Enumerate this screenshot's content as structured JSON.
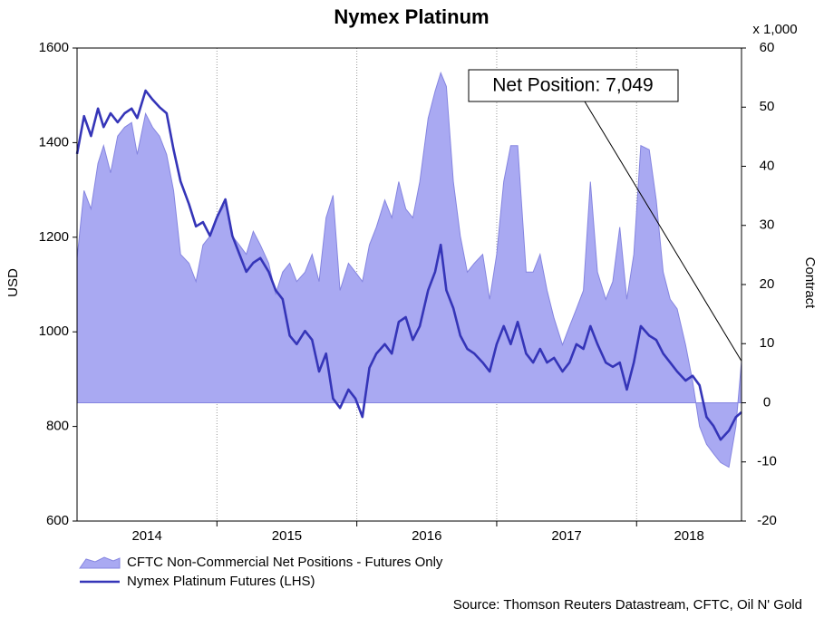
{
  "chart_data": {
    "type": "area-line",
    "title": "Nymex Platinum",
    "y_label": "USD",
    "y2_label": "Contract",
    "y2_unit": "x 1,000",
    "source": "Source: Thomson Reuters Datastream, CFTC, Oil N' Gold",
    "annotation": "Net Position: 7,049",
    "x": [
      2014.0,
      2014.05,
      2014.1,
      2014.15,
      2014.19,
      2014.24,
      2014.29,
      2014.34,
      2014.39,
      2014.43,
      2014.49,
      2014.54,
      2014.59,
      2014.64,
      2014.69,
      2014.74,
      2014.8,
      2014.85,
      2014.9,
      2014.95,
      2015.0,
      2015.06,
      2015.11,
      2015.16,
      2015.21,
      2015.26,
      2015.31,
      2015.37,
      2015.42,
      2015.47,
      2015.52,
      2015.57,
      2015.63,
      2015.68,
      2015.73,
      2015.78,
      2015.83,
      2015.88,
      2015.94,
      2015.99,
      2016.04,
      2016.09,
      2016.14,
      2016.2,
      2016.25,
      2016.3,
      2016.35,
      2016.4,
      2016.45,
      2016.51,
      2016.56,
      2016.6,
      2016.64,
      2016.69,
      2016.74,
      2016.79,
      2016.84,
      2016.9,
      2016.95,
      2017.0,
      2017.05,
      2017.1,
      2017.15,
      2017.21,
      2017.26,
      2017.31,
      2017.36,
      2017.41,
      2017.47,
      2017.52,
      2017.57,
      2017.62,
      2017.67,
      2017.72,
      2017.78,
      2017.83,
      2017.88,
      2017.93,
      2017.98,
      2018.03,
      2018.09,
      2018.14,
      2018.19,
      2018.24,
      2018.29,
      2018.35,
      2018.4,
      2018.45,
      2018.5,
      2018.55,
      2018.6,
      2018.66,
      2018.71,
      2018.75
    ],
    "series": [
      {
        "name": "CFTC Non-Commercial Net Positions - Futures Only",
        "kind": "area",
        "axis": "y2",
        "color": "#a9a9f2",
        "edge": "#8585e0",
        "values": [
          24.4,
          35.9,
          32.8,
          40.5,
          43.5,
          38.9,
          45.1,
          46.6,
          47.4,
          42.0,
          48.9,
          46.6,
          45.1,
          42.0,
          35.9,
          25.1,
          23.6,
          20.5,
          26.7,
          28.2,
          31.3,
          33.6,
          28.2,
          26.7,
          25.1,
          29.0,
          26.7,
          23.6,
          18.4,
          22.1,
          23.6,
          20.5,
          22.1,
          25.1,
          20.5,
          31.3,
          35.1,
          19.0,
          23.6,
          22.1,
          20.5,
          26.7,
          29.7,
          34.3,
          31.3,
          37.4,
          32.8,
          31.3,
          37.4,
          48.1,
          52.7,
          55.8,
          53.5,
          37.4,
          28.2,
          22.1,
          23.6,
          25.1,
          17.5,
          25.1,
          37.4,
          43.5,
          43.5,
          22.1,
          22.1,
          25.1,
          19.0,
          14.3,
          9.8,
          12.9,
          15.9,
          19.0,
          37.4,
          22.1,
          17.5,
          20.5,
          29.7,
          17.5,
          25.1,
          43.5,
          42.8,
          34.3,
          22.1,
          17.5,
          15.9,
          9.8,
          3.7,
          -4.0,
          -7.0,
          -8.6,
          -10.1,
          -10.9,
          -4.0,
          7.049
        ]
      },
      {
        "name": "Nymex Platinum Futures (LHS)",
        "kind": "line",
        "axis": "y",
        "color": "#3535b8",
        "values": [
          1376,
          1456,
          1414,
          1472,
          1433,
          1462,
          1443,
          1462,
          1472,
          1452,
          1510,
          1491,
          1475,
          1462,
          1385,
          1318,
          1270,
          1223,
          1232,
          1203,
          1242,
          1280,
          1203,
          1165,
          1127,
          1146,
          1156,
          1127,
          1088,
          1069,
          992,
          974,
          1002,
          983,
          916,
          954,
          859,
          839,
          878,
          859,
          820,
          924,
          954,
          974,
          954,
          1021,
          1031,
          983,
          1012,
          1088,
          1127,
          1184,
          1088,
          1050,
          992,
          964,
          954,
          935,
          916,
          974,
          1012,
          974,
          1021,
          954,
          935,
          964,
          935,
          945,
          916,
          935,
          974,
          964,
          1012,
          974,
          935,
          926,
          935,
          878,
          935,
          1012,
          992,
          983,
          954,
          935,
          916,
          897,
          907,
          887,
          820,
          801,
          772,
          791,
          820,
          830
        ]
      }
    ],
    "xlim": [
      2014,
      2018.75
    ],
    "xticks": [
      {
        "value": 2014.5,
        "label": "2014"
      },
      {
        "value": 2015.5,
        "label": "2015"
      },
      {
        "value": 2016.5,
        "label": "2016"
      },
      {
        "value": 2017.5,
        "label": "2017"
      },
      {
        "value": 2018.375,
        "label": "2018"
      }
    ],
    "xgrid": [
      2015,
      2016,
      2017,
      2018
    ],
    "ylim": [
      600,
      1600
    ],
    "yticks": [
      600,
      800,
      1000,
      1200,
      1400,
      1600
    ],
    "y2lim": [
      -20,
      60
    ],
    "y2ticks": [
      -20,
      -10,
      0,
      10,
      20,
      30,
      40,
      50,
      60
    ],
    "grid": true
  }
}
